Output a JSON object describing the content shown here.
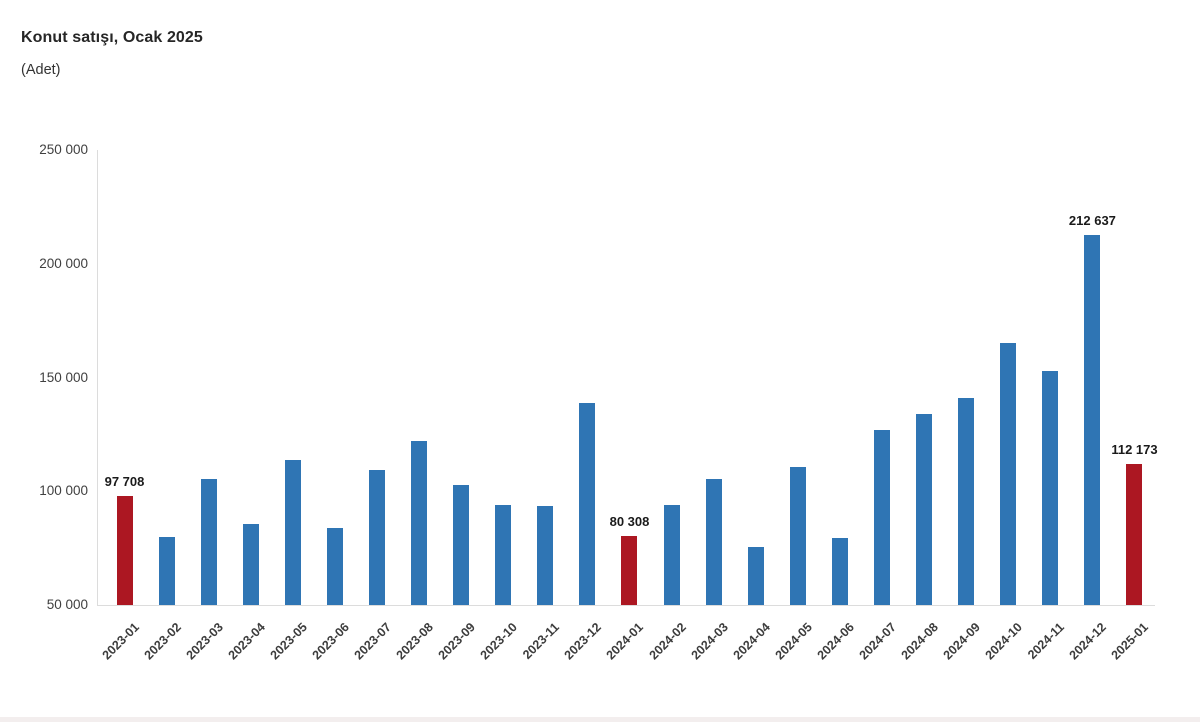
{
  "header": {
    "title": "Konut satışı, Ocak 2025",
    "subtitle": "(Adet)"
  },
  "chart_data": {
    "type": "bar",
    "title": "Konut satışı, Ocak 2025",
    "subtitle": "(Adet)",
    "xlabel": "",
    "ylabel": "",
    "unit": "Adet",
    "categories": [
      "2023-01",
      "2023-02",
      "2023-03",
      "2023-04",
      "2023-05",
      "2023-06",
      "2023-07",
      "2023-08",
      "2023-09",
      "2023-10",
      "2023-11",
      "2023-12",
      "2024-01",
      "2024-02",
      "2024-03",
      "2024-04",
      "2024-05",
      "2024-06",
      "2024-07",
      "2024-08",
      "2024-09",
      "2024-10",
      "2024-11",
      "2024-12",
      "2025-01"
    ],
    "values": [
      97708,
      80031,
      105476,
      85652,
      113587,
      83636,
      109548,
      122091,
      102656,
      93761,
      93514,
      138577,
      80308,
      93902,
      105394,
      75569,
      110588,
      79313,
      127088,
      134155,
      140919,
      165138,
      153014,
      212637,
      112173
    ],
    "highlight_indices": [
      0,
      12,
      24
    ],
    "data_labels": [
      {
        "index": 0,
        "text": "97 708"
      },
      {
        "index": 12,
        "text": "80 308"
      },
      {
        "index": 23,
        "text": "212 637"
      },
      {
        "index": 24,
        "text": "112 173"
      }
    ],
    "ylim": [
      50000,
      250000
    ],
    "yticks": [
      {
        "value": 250000,
        "label": "250 000"
      },
      {
        "value": 200000,
        "label": "200 000"
      },
      {
        "value": 150000,
        "label": "150 000"
      },
      {
        "value": 100000,
        "label": "100 000"
      },
      {
        "value": 50000,
        "label": "50 000"
      }
    ],
    "grid": false,
    "legend": false
  },
  "colors": {
    "bar_blue": "#2F75B4",
    "bar_red": "#AC1722",
    "axis_line": "#DCDCDC",
    "tick_text": "#404040",
    "title_text": "#262626",
    "data_label_text": "#1A1A1A",
    "bottom_divider": "#F3EEEE"
  }
}
